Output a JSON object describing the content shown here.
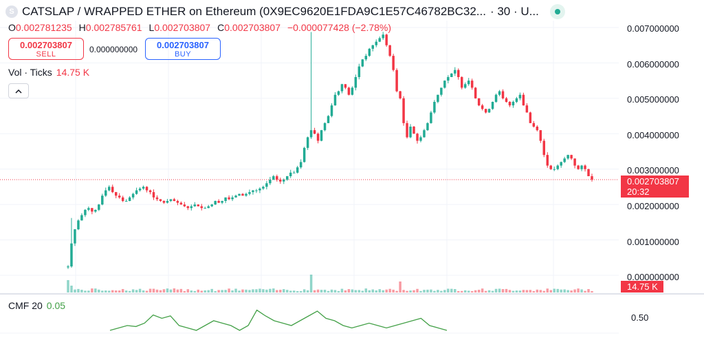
{
  "header": {
    "symbol_icon_letter": "S",
    "title": "CATSLAP / WRAPPED ETHER on Ethereum (0X9EC9620E1FDA9C1E57C46782BC32...",
    "interval": "· 30 · U...",
    "live_indicator": "green-dot-icon"
  },
  "ohlc": {
    "o_label": "O",
    "o_value": "0.002781235",
    "h_label": "H",
    "h_value": "0.002785761",
    "l_label": "L",
    "l_value": "0.002703807",
    "c_label": "C",
    "c_value": "0.002703807",
    "change": "−0.000077428 (−2.78%)"
  },
  "trade": {
    "sell_price": "0.002703807",
    "sell_label": "SELL",
    "spread": "0.000000000",
    "buy_price": "0.002703807",
    "buy_label": "BUY"
  },
  "volume_legend": {
    "label": "Vol · Ticks",
    "value": "14.75 K"
  },
  "collapse_icon": "chevron-up-icon",
  "price_axis": {
    "ticks": [
      "0.007000000",
      "0.006000000",
      "0.005000000",
      "0.004000000",
      "0.003000000",
      "0.002000000",
      "0.001000000",
      "0.000000000"
    ],
    "current_price": "0.002703807",
    "countdown": "20:32",
    "volume_value": "14.75 K"
  },
  "cmf": {
    "label": "CMF 20",
    "value": "0.05",
    "axis_tick": "0.50"
  },
  "colors": {
    "up": "#22ab94",
    "down": "#f23645",
    "buy": "#2962ff",
    "cmf": "#43a047"
  },
  "chart_data": {
    "type": "candlestick",
    "y_range": [
      0,
      0.007
    ],
    "current_price": 0.002703807,
    "close_series": [
      0.00025,
      0.0009,
      0.0013,
      0.00155,
      0.0017,
      0.00185,
      0.0019,
      0.0018,
      0.00185,
      0.002,
      0.00225,
      0.0024,
      0.0025,
      0.00235,
      0.00225,
      0.0022,
      0.0021,
      0.0021,
      0.0022,
      0.0023,
      0.0024,
      0.00245,
      0.0025,
      0.0024,
      0.00235,
      0.0022,
      0.00215,
      0.0021,
      0.00205,
      0.0021,
      0.00215,
      0.0021,
      0.00205,
      0.002,
      0.00195,
      0.0019,
      0.00195,
      0.002,
      0.00195,
      0.0019,
      0.0019,
      0.00195,
      0.002,
      0.0021,
      0.00205,
      0.0021,
      0.0022,
      0.00215,
      0.0022,
      0.00225,
      0.0023,
      0.00225,
      0.0023,
      0.00235,
      0.0024,
      0.0024,
      0.00245,
      0.0025,
      0.0026,
      0.0027,
      0.0028,
      0.0027,
      0.00265,
      0.0027,
      0.0028,
      0.0029,
      0.0029,
      0.00305,
      0.0032,
      0.0036,
      0.0039,
      0.0041,
      0.004,
      0.0038,
      0.0041,
      0.0043,
      0.0045,
      0.0048,
      0.0051,
      0.0052,
      0.0054,
      0.0053,
      0.0051,
      0.0053,
      0.0056,
      0.0059,
      0.0061,
      0.0062,
      0.0064,
      0.0065,
      0.0066,
      0.0067,
      0.0068,
      0.0065,
      0.0062,
      0.0058,
      0.0052,
      0.005,
      0.0043,
      0.0039,
      0.0042,
      0.004,
      0.0038,
      0.0039,
      0.0041,
      0.0043,
      0.0046,
      0.0049,
      0.0051,
      0.0053,
      0.0055,
      0.0056,
      0.0057,
      0.0058,
      0.0056,
      0.0053,
      0.0054,
      0.0055,
      0.0053,
      0.005,
      0.0048,
      0.0047,
      0.0046,
      0.0047,
      0.0049,
      0.0051,
      0.0052,
      0.005,
      0.0049,
      0.0048,
      0.0049,
      0.005,
      0.0051,
      0.0048,
      0.0046,
      0.0043,
      0.0042,
      0.0041,
      0.0038,
      0.0034,
      0.0031,
      0.003,
      0.003,
      0.0031,
      0.0032,
      0.0033,
      0.0034,
      0.0033,
      0.0031,
      0.003,
      0.0031,
      0.003,
      0.0028,
      0.0027
    ],
    "cmf_series": [
      0.2,
      0.25,
      0.3,
      0.28,
      0.35,
      0.52,
      0.45,
      0.5,
      0.3,
      0.25,
      0.2,
      0.3,
      0.4,
      0.35,
      0.3,
      0.2,
      0.3,
      0.62,
      0.5,
      0.4,
      0.35,
      0.3,
      0.4,
      0.5,
      0.6,
      0.45,
      0.4,
      0.3,
      0.25,
      0.3,
      0.35,
      0.3,
      0.25,
      0.3,
      0.35,
      0.4,
      0.45,
      0.3,
      0.25,
      0.2
    ]
  }
}
